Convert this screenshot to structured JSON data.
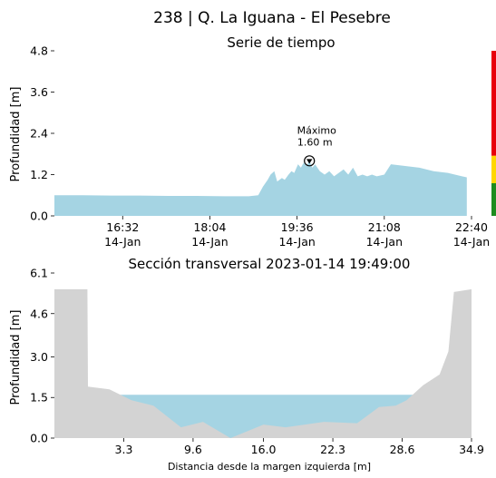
{
  "figure": {
    "title": "238 | Q. La Iguana - El Pesebre"
  },
  "colors": {
    "water": "#a5d4e3",
    "terrain": "#d3d3d3",
    "level_red": "#e8000b",
    "level_yellow": "#ffd700",
    "level_green": "#1e8c1e"
  },
  "chart_data": [
    {
      "type": "area",
      "title": "Serie de tiempo",
      "xlabel": "",
      "ylabel": "Profundidad [m]",
      "ylim": [
        0,
        4.8
      ],
      "yticks": [
        "0.0",
        "1.2",
        "2.4",
        "3.6",
        "4.8"
      ],
      "xlim": [
        "2023-01-14 15:20",
        "2023-01-14 22:40"
      ],
      "xticks": [
        {
          "time": "16:32",
          "date": "14-Jan"
        },
        {
          "time": "18:04",
          "date": "14-Jan"
        },
        {
          "time": "19:36",
          "date": "14-Jan"
        },
        {
          "time": "21:08",
          "date": "14-Jan"
        },
        {
          "time": "22:40",
          "date": "14-Jan"
        }
      ],
      "x": [
        "15:20",
        "15:50",
        "16:20",
        "16:50",
        "17:20",
        "17:50",
        "18:20",
        "18:45",
        "18:55",
        "19:00",
        "19:05",
        "19:08",
        "19:12",
        "19:15",
        "19:20",
        "19:23",
        "19:27",
        "19:30",
        "19:33",
        "19:37",
        "19:40",
        "19:43",
        "19:46",
        "19:49",
        "19:52",
        "19:55",
        "20:00",
        "20:05",
        "20:10",
        "20:15",
        "20:20",
        "20:25",
        "20:30",
        "20:35",
        "20:40",
        "20:45",
        "20:50",
        "20:55",
        "21:00",
        "21:08",
        "21:15",
        "21:30",
        "21:45",
        "22:00",
        "22:15",
        "22:30",
        "22:35"
      ],
      "y": [
        0.6,
        0.6,
        0.59,
        0.59,
        0.58,
        0.58,
        0.57,
        0.57,
        0.6,
        0.85,
        1.05,
        1.2,
        1.3,
        1.0,
        1.1,
        1.05,
        1.2,
        1.3,
        1.25,
        1.5,
        1.4,
        1.55,
        1.45,
        1.6,
        1.4,
        1.5,
        1.3,
        1.2,
        1.3,
        1.15,
        1.25,
        1.35,
        1.2,
        1.4,
        1.15,
        1.2,
        1.15,
        1.2,
        1.15,
        1.2,
        1.5,
        1.45,
        1.4,
        1.3,
        1.25,
        1.15,
        1.12
      ],
      "annotation": {
        "label": "Máximo",
        "value": "1.60 m",
        "x": "19:49",
        "y": 1.6
      },
      "level_bar": [
        {
          "from": 0,
          "to": 0.95,
          "color": "#1e8c1e"
        },
        {
          "from": 0.95,
          "to": 1.75,
          "color": "#ffd700"
        },
        {
          "from": 1.75,
          "to": 4.8,
          "color": "#e8000b"
        }
      ]
    },
    {
      "type": "area",
      "title": "Sección transversal 2023-01-14 19:49:00",
      "xlabel": "Distancia desde la margen izquierda [m]",
      "ylabel": "Profundidad [m]",
      "ylim": [
        0,
        6.1
      ],
      "xlim": [
        -3.0,
        34.9
      ],
      "yticks": [
        "0.0",
        "1.5",
        "3.0",
        "4.6",
        "6.1"
      ],
      "xticks": [
        "3.3",
        "9.6",
        "16.0",
        "22.3",
        "28.6",
        "34.9"
      ],
      "water_level": 1.6,
      "terrain_x": [
        -3.0,
        0.0,
        0.05,
        2.0,
        4.0,
        6.0,
        8.5,
        10.5,
        13.0,
        16.0,
        18.0,
        21.5,
        24.5,
        26.5,
        28.0,
        29.0,
        30.5,
        32.0,
        32.8,
        33.3,
        34.9
      ],
      "terrain_y": [
        5.5,
        5.5,
        1.9,
        1.8,
        1.4,
        1.2,
        0.4,
        0.6,
        0.0,
        0.5,
        0.4,
        0.6,
        0.55,
        1.15,
        1.2,
        1.4,
        1.95,
        2.35,
        3.2,
        5.4,
        5.5
      ]
    }
  ]
}
